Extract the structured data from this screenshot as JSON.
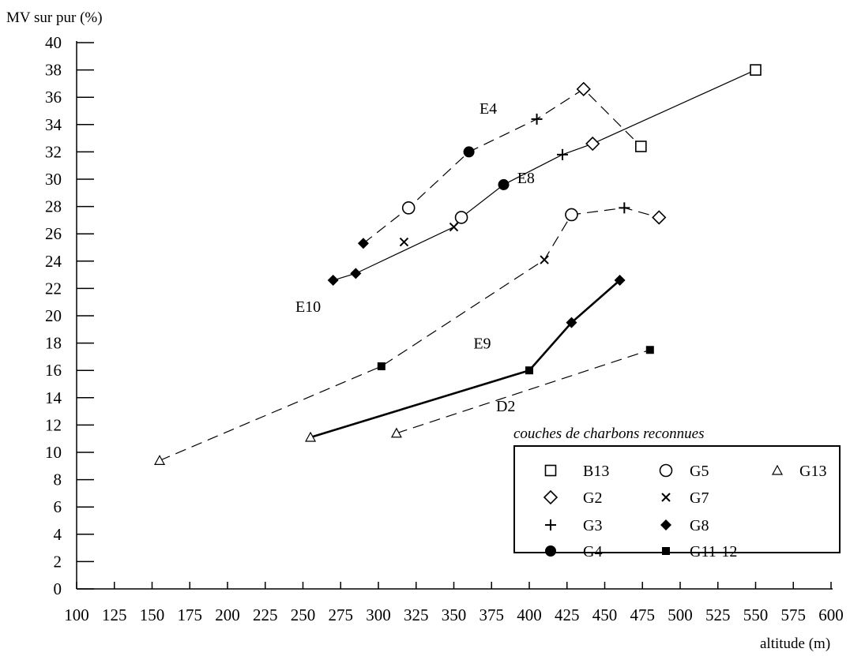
{
  "chart_data": {
    "type": "scatter",
    "ylabel": "MV sur pur (%)",
    "xlabel": "altitude (m)",
    "xlim": [
      100,
      600
    ],
    "ylim": [
      0,
      40
    ],
    "x_ticks": [
      100,
      125,
      150,
      175,
      200,
      225,
      250,
      275,
      300,
      325,
      350,
      375,
      400,
      425,
      450,
      475,
      500,
      525,
      550,
      575,
      600
    ],
    "y_ticks": [
      0,
      2,
      4,
      6,
      8,
      10,
      12,
      14,
      16,
      18,
      20,
      22,
      24,
      26,
      28,
      30,
      32,
      34,
      36,
      38,
      40
    ],
    "grid": false,
    "legend": {
      "title": "couches de charbons reconnues",
      "placement": "bottom-right",
      "entries": [
        {
          "name": "B13",
          "marker": "square-open"
        },
        {
          "name": "G2",
          "marker": "diamond-open"
        },
        {
          "name": "G3",
          "marker": "plus"
        },
        {
          "name": "G4",
          "marker": "circle-filled"
        },
        {
          "name": "G5",
          "marker": "circle-open"
        },
        {
          "name": "G7",
          "marker": "cross"
        },
        {
          "name": "G8",
          "marker": "diamond-filled"
        },
        {
          "name": "G11-12",
          "marker": "square-filled"
        },
        {
          "name": "G13",
          "marker": "triangle-open"
        }
      ]
    },
    "curves": [
      {
        "name": "E4",
        "style": "dashed",
        "width": "normal",
        "points": [
          [
            290,
            25.3,
            "G8"
          ],
          [
            320,
            27.9,
            "G5"
          ],
          [
            360,
            32.0,
            "G4"
          ],
          [
            405,
            34.4,
            "G3"
          ],
          [
            436,
            36.6,
            "G2"
          ],
          [
            474,
            32.4,
            "B13"
          ]
        ]
      },
      {
        "name": "E8",
        "style": "solid",
        "width": "normal",
        "points": [
          [
            270,
            22.6,
            "G8"
          ],
          [
            285,
            23.1,
            "G8"
          ],
          [
            350,
            26.5,
            "G7"
          ],
          [
            355,
            27.2,
            "G5"
          ],
          [
            383,
            29.6,
            "G4"
          ],
          [
            422,
            31.8,
            "G3"
          ],
          [
            442,
            32.6,
            "G2"
          ],
          [
            550,
            38.0,
            "B13"
          ]
        ]
      },
      {
        "name": "E10",
        "style": "dashed",
        "width": "normal",
        "points": [
          [
            155,
            9.4,
            "G13"
          ],
          [
            302,
            16.3,
            "G11-12"
          ],
          [
            410,
            24.1,
            "G7"
          ],
          [
            428,
            27.4,
            "G5"
          ],
          [
            463,
            27.9,
            "G3"
          ],
          [
            486,
            27.2,
            "G2"
          ]
        ]
      },
      {
        "name": "E9",
        "style": "solid",
        "width": "bold",
        "points": [
          [
            255,
            11.1,
            "G13"
          ],
          [
            400,
            16.0,
            "G11-12"
          ],
          [
            428,
            19.5,
            "G8"
          ],
          [
            460,
            22.6,
            "G8"
          ]
        ]
      },
      {
        "name": "D2",
        "style": "dashed",
        "width": "normal",
        "points": [
          [
            312,
            11.4,
            "G13"
          ],
          [
            480,
            17.5,
            "G11-12"
          ]
        ]
      }
    ],
    "extra_points": [
      [
        317,
        25.4,
        "G7"
      ]
    ],
    "curve_labels": [
      {
        "text": "E4",
        "x": 367,
        "y": 34.8
      },
      {
        "text": "E8",
        "x": 392,
        "y": 29.7
      },
      {
        "text": "E10",
        "x": 245,
        "y": 20.3
      },
      {
        "text": "E9",
        "x": 363,
        "y": 17.6
      },
      {
        "text": "D2",
        "x": 378,
        "y": 13.0
      }
    ]
  }
}
